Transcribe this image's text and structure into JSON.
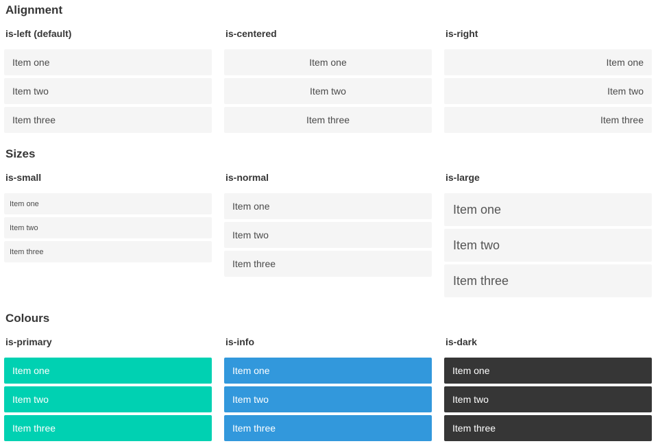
{
  "colors": {
    "primary": "#00d1b2",
    "info": "#3298dc",
    "dark": "#363636",
    "item_bg": "#f5f5f5",
    "item_text": "#4a4a4a",
    "heading_text": "#363636",
    "light_text": "#ffffff"
  },
  "sections": [
    {
      "title": "Alignment",
      "columns": [
        {
          "subtitle": "is-left (default)",
          "items": [
            "Item one",
            "Item two",
            "Item three"
          ]
        },
        {
          "subtitle": "is-centered",
          "items": [
            "Item one",
            "Item two",
            "Item three"
          ]
        },
        {
          "subtitle": "is-right",
          "items": [
            "Item one",
            "Item two",
            "Item three"
          ]
        }
      ]
    },
    {
      "title": "Sizes",
      "columns": [
        {
          "subtitle": "is-small",
          "items": [
            "Item one",
            "Item two",
            "Item three"
          ]
        },
        {
          "subtitle": "is-normal",
          "items": [
            "Item one",
            "Item two",
            "Item three"
          ]
        },
        {
          "subtitle": "is-large",
          "items": [
            "Item one",
            "Item two",
            "Item three"
          ]
        }
      ]
    },
    {
      "title": "Colours",
      "columns": [
        {
          "subtitle": "is-primary",
          "items": [
            "Item one",
            "Item two",
            "Item three"
          ]
        },
        {
          "subtitle": "is-info",
          "items": [
            "Item one",
            "Item two",
            "Item three"
          ]
        },
        {
          "subtitle": "is-dark",
          "items": [
            "Item one",
            "Item two",
            "Item three"
          ]
        }
      ]
    }
  ]
}
